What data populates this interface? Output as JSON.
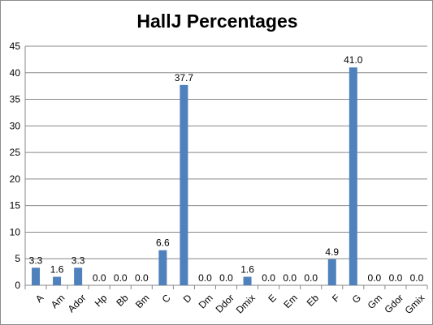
{
  "chart_data": {
    "type": "bar",
    "title": "HallJ Percentages",
    "xlabel": "",
    "ylabel": "",
    "ylim": [
      0,
      45
    ],
    "yticks": [
      0,
      5,
      10,
      15,
      20,
      25,
      30,
      35,
      40,
      45
    ],
    "grid": "horizontal",
    "legend": "none",
    "bar_color": "#4F81BD",
    "categories": [
      "A",
      "Am",
      "Ador",
      "Hp",
      "Bb",
      "Bm",
      "C",
      "D",
      "Dm",
      "Ddor",
      "Dmix",
      "E",
      "Em",
      "Eb",
      "F",
      "G",
      "Gm",
      "Gdor",
      "Gmix"
    ],
    "values": [
      3.3,
      1.6,
      3.3,
      0.0,
      0.0,
      0.0,
      6.6,
      37.7,
      0.0,
      0.0,
      1.6,
      0.0,
      0.0,
      0.0,
      4.9,
      41.0,
      0.0,
      0.0,
      0.0
    ],
    "data_labels": [
      "3.3",
      "1.6",
      "3.3",
      "0.0",
      "0.0",
      "0.0",
      "6.6",
      "37.7",
      "0.0",
      "0.0",
      "1.6",
      "0.0",
      "0.0",
      "0.0",
      "4.9",
      "41.0",
      "0.0",
      "0.0",
      "0.0"
    ]
  }
}
